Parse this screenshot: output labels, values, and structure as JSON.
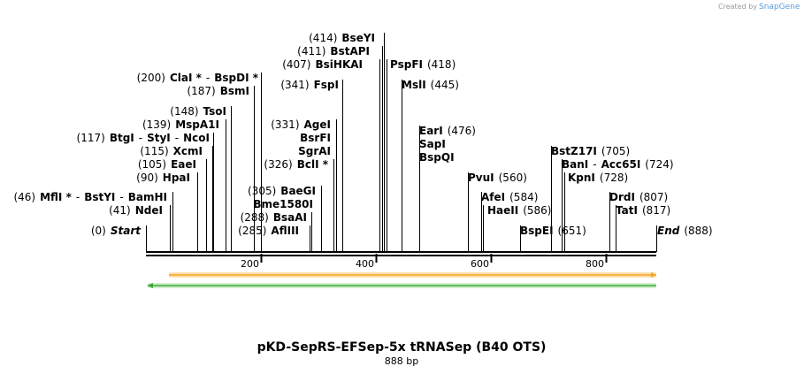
{
  "credit": {
    "text": "Created by",
    "brand": "SnapGene"
  },
  "title": "pKD-SepRS-EFSep-5x tRNASep (B40 OTS)",
  "length_label": "888 bp",
  "length_bp": 888,
  "axis": {
    "ticks": [
      200,
      400,
      600,
      800
    ]
  },
  "colors": {
    "backbone": "#000000",
    "forward_feature": "#f5a623",
    "forward_feature_fill": "#fde0b0",
    "reverse_feature": "#3da53a",
    "reverse_feature_fill": "#cdeec9",
    "credit_accent": "#5a9bd5"
  },
  "features": [
    {
      "name": "forward-orange",
      "start": 40,
      "end": 888,
      "strand": "+"
    },
    {
      "name": "reverse-green",
      "start": 3,
      "end": 888,
      "strand": "-"
    }
  ],
  "sites": [
    {
      "id": "s414",
      "line_bp": 414,
      "parts": [
        {
          "t": "(414)",
          "c": "pos"
        },
        {
          "t": "BseYI",
          "c": "nm"
        }
      ]
    },
    {
      "id": "s411",
      "line_bp": 411,
      "parts": [
        {
          "t": "(411)",
          "c": "pos"
        },
        {
          "t": "BstAPI",
          "c": "nm"
        }
      ]
    },
    {
      "id": "s407",
      "line_bp": 407,
      "parts": [
        {
          "t": "(407)",
          "c": "pos"
        },
        {
          "t": "BsiHKAI",
          "c": "nm"
        }
      ]
    },
    {
      "id": "s418",
      "line_bp": 418,
      "parts": [
        {
          "t": "PspFI",
          "c": "nm"
        },
        {
          "t": "(418)",
          "c": "pos"
        }
      ]
    },
    {
      "id": "s445",
      "line_bp": 445,
      "parts": [
        {
          "t": "MslI",
          "c": "nm"
        },
        {
          "t": "(445)",
          "c": "pos"
        }
      ]
    },
    {
      "id": "s341",
      "line_bp": 341,
      "parts": [
        {
          "t": "(341)",
          "c": "pos"
        },
        {
          "t": "FspI",
          "c": "nm"
        }
      ]
    },
    {
      "id": "s200",
      "line_bp": 200,
      "parts": [
        {
          "t": "(200)",
          "c": "pos"
        },
        {
          "t": "ClaI *",
          "c": "nm"
        },
        {
          "t": "-",
          "c": "pos"
        },
        {
          "t": "BspDI *",
          "c": "nm"
        }
      ]
    },
    {
      "id": "s187",
      "line_bp": 187,
      "parts": [
        {
          "t": "(187)",
          "c": "pos"
        },
        {
          "t": "BsmI",
          "c": "nm"
        }
      ]
    },
    {
      "id": "s148",
      "line_bp": 148,
      "parts": [
        {
          "t": "(148)",
          "c": "pos"
        },
        {
          "t": "TsoI",
          "c": "nm"
        }
      ]
    },
    {
      "id": "s139",
      "line_bp": 139,
      "parts": [
        {
          "t": "(139)",
          "c": "pos"
        },
        {
          "t": "MspA1I",
          "c": "nm"
        }
      ]
    },
    {
      "id": "s117",
      "line_bp": 117,
      "parts": [
        {
          "t": "(117)",
          "c": "pos"
        },
        {
          "t": "BtgI",
          "c": "nm"
        },
        {
          "t": "-",
          "c": "pos"
        },
        {
          "t": "StyI",
          "c": "nm"
        },
        {
          "t": "-",
          "c": "pos"
        },
        {
          "t": "NcoI",
          "c": "nm"
        }
      ]
    },
    {
      "id": "s115",
      "line_bp": 115,
      "parts": [
        {
          "t": "(115)",
          "c": "pos"
        },
        {
          "t": "XcmI",
          "c": "nm"
        }
      ]
    },
    {
      "id": "s105",
      "line_bp": 105,
      "parts": [
        {
          "t": "(105)",
          "c": "pos"
        },
        {
          "t": "EaeI",
          "c": "nm"
        }
      ]
    },
    {
      "id": "s90",
      "line_bp": 90,
      "parts": [
        {
          "t": "(90)",
          "c": "pos"
        },
        {
          "t": "HpaI",
          "c": "nm"
        }
      ]
    },
    {
      "id": "s46",
      "line_bp": 46,
      "parts": [
        {
          "t": "(46)",
          "c": "pos"
        },
        {
          "t": "MflI *",
          "c": "nm"
        },
        {
          "t": "-",
          "c": "pos"
        },
        {
          "t": "BstYI",
          "c": "nm"
        },
        {
          "t": "-",
          "c": "pos"
        },
        {
          "t": "BamHI",
          "c": "nm"
        }
      ]
    },
    {
      "id": "s41",
      "line_bp": 41,
      "parts": [
        {
          "t": "(41)",
          "c": "pos"
        },
        {
          "t": "NdeI",
          "c": "nm"
        }
      ]
    },
    {
      "id": "s0",
      "line_bp": 0,
      "parts": [
        {
          "t": "(0)",
          "c": "pos"
        },
        {
          "t": "Start",
          "c": "it"
        }
      ]
    },
    {
      "id": "s331",
      "line_bp": 331,
      "parts": [
        {
          "t": "(331)",
          "c": "pos"
        },
        {
          "t": "AgeI",
          "c": "nm"
        }
      ]
    },
    {
      "id": "sbsrfi",
      "line_bp": 331,
      "parts": [
        {
          "t": "BsrFI",
          "c": "nm"
        }
      ]
    },
    {
      "id": "ssgrai",
      "line_bp": 331,
      "parts": [
        {
          "t": "SgrAI",
          "c": "nm"
        }
      ]
    },
    {
      "id": "s326",
      "line_bp": 326,
      "parts": [
        {
          "t": "(326)",
          "c": "pos"
        },
        {
          "t": "BclI *",
          "c": "nm"
        }
      ]
    },
    {
      "id": "s305",
      "line_bp": 305,
      "parts": [
        {
          "t": "(305)",
          "c": "pos"
        },
        {
          "t": "BaeGI",
          "c": "nm"
        }
      ]
    },
    {
      "id": "sbme",
      "line_bp": 305,
      "parts": [
        {
          "t": "Bme1580I",
          "c": "nm"
        }
      ]
    },
    {
      "id": "s288",
      "line_bp": 288,
      "parts": [
        {
          "t": "(288)",
          "c": "pos"
        },
        {
          "t": "BsaAI",
          "c": "nm"
        }
      ]
    },
    {
      "id": "s285",
      "line_bp": 285,
      "parts": [
        {
          "t": "(285)",
          "c": "pos"
        },
        {
          "t": "AflIII",
          "c": "nm"
        }
      ]
    },
    {
      "id": "s476",
      "line_bp": 476,
      "parts": [
        {
          "t": "EarI",
          "c": "nm"
        },
        {
          "t": "(476)",
          "c": "pos"
        }
      ]
    },
    {
      "id": "ssapi",
      "line_bp": 476,
      "parts": [
        {
          "t": "SapI",
          "c": "nm"
        }
      ]
    },
    {
      "id": "sbspqi",
      "line_bp": 476,
      "parts": [
        {
          "t": "BspQI",
          "c": "nm"
        }
      ]
    },
    {
      "id": "s560",
      "line_bp": 560,
      "parts": [
        {
          "t": "PvuI",
          "c": "nm"
        },
        {
          "t": "(560)",
          "c": "pos"
        }
      ]
    },
    {
      "id": "s584",
      "line_bp": 584,
      "parts": [
        {
          "t": "AfeI",
          "c": "nm"
        },
        {
          "t": "(584)",
          "c": "pos"
        }
      ]
    },
    {
      "id": "s586",
      "line_bp": 586,
      "parts": [
        {
          "t": "HaeII",
          "c": "nm"
        },
        {
          "t": "(586)",
          "c": "pos"
        }
      ]
    },
    {
      "id": "s651",
      "line_bp": 651,
      "parts": [
        {
          "t": "BspEI",
          "c": "nm"
        },
        {
          "t": "(651)",
          "c": "pos"
        }
      ]
    },
    {
      "id": "s705",
      "line_bp": 705,
      "parts": [
        {
          "t": "BstZ17I",
          "c": "nm"
        },
        {
          "t": "(705)",
          "c": "pos"
        }
      ]
    },
    {
      "id": "s724",
      "line_bp": 724,
      "parts": [
        {
          "t": "BanI",
          "c": "nm"
        },
        {
          "t": "-",
          "c": "pos"
        },
        {
          "t": "Acc65I",
          "c": "nm"
        },
        {
          "t": "(724)",
          "c": "pos"
        }
      ]
    },
    {
      "id": "s728",
      "line_bp": 728,
      "parts": [
        {
          "t": "KpnI",
          "c": "nm"
        },
        {
          "t": "(728)",
          "c": "pos"
        }
      ]
    },
    {
      "id": "s807",
      "line_bp": 807,
      "parts": [
        {
          "t": "DrdI",
          "c": "nm"
        },
        {
          "t": "(807)",
          "c": "pos"
        }
      ]
    },
    {
      "id": "s817",
      "line_bp": 817,
      "parts": [
        {
          "t": "TatI",
          "c": "nm"
        },
        {
          "t": "(817)",
          "c": "pos"
        }
      ]
    },
    {
      "id": "s888",
      "line_bp": 888,
      "parts": [
        {
          "t": "End",
          "c": "it"
        },
        {
          "t": "(888)",
          "c": "pos"
        }
      ]
    }
  ]
}
